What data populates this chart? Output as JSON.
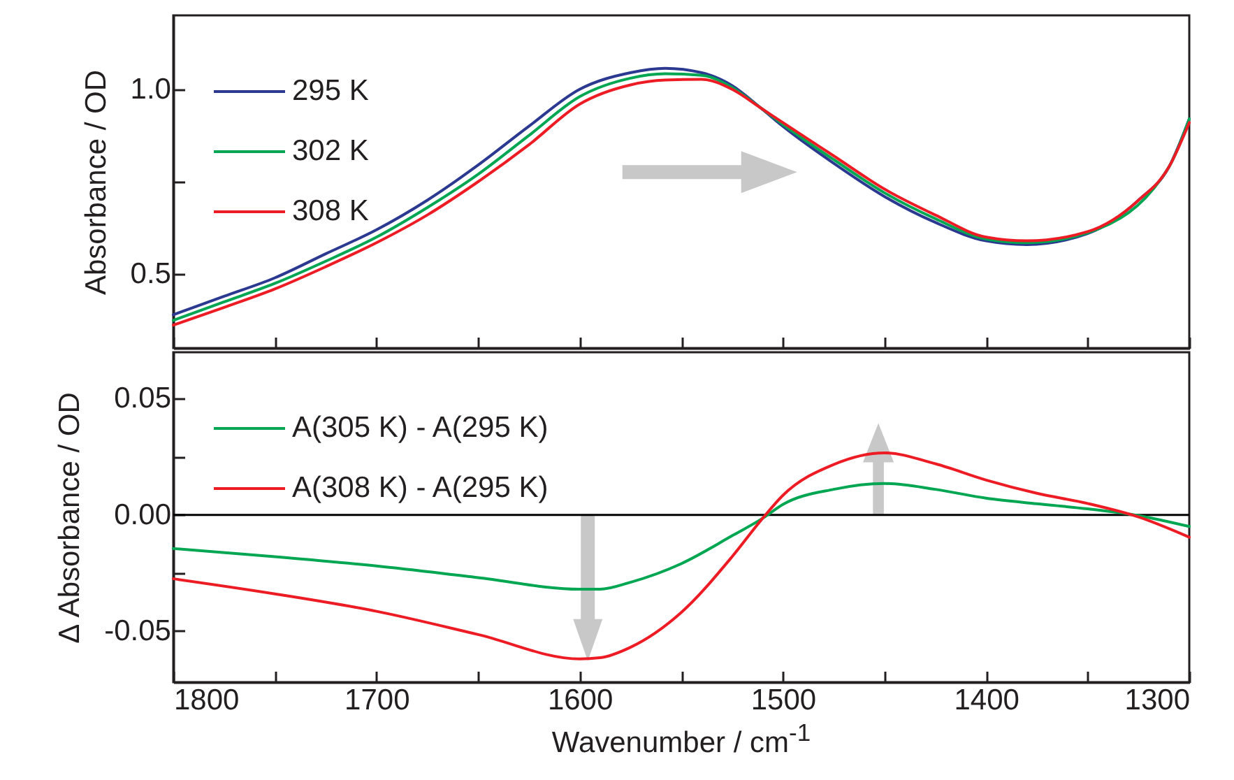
{
  "chart_data": [
    {
      "type": "line",
      "ylabel": "Absorbance / OD",
      "xlim": [
        1800,
        1300
      ],
      "xticks": [
        {
          "value": 1800,
          "label": null
        },
        {
          "value": 1750,
          "label": null
        },
        {
          "value": 1700,
          "label": null
        },
        {
          "value": 1650,
          "label": null
        },
        {
          "value": 1600,
          "label": null
        },
        {
          "value": 1550,
          "label": null
        },
        {
          "value": 1500,
          "label": null
        },
        {
          "value": 1450,
          "label": null
        },
        {
          "value": 1400,
          "label": null
        },
        {
          "value": 1350,
          "label": null
        },
        {
          "value": 1300,
          "label": null
        }
      ],
      "ylim": [
        0.3,
        1.2
      ],
      "yticks": [
        0.5,
        {
          "value": 0.75,
          "label": null
        },
        {
          "value": 1,
          "label": "1.0"
        }
      ],
      "tick_labels": "y",
      "legend": "top left",
      "x": [
        1800,
        1775,
        1750,
        1725,
        1700,
        1675,
        1650,
        1625,
        1600,
        1575,
        1558,
        1540,
        1525,
        1511,
        1500,
        1475,
        1450,
        1425,
        1400,
        1380,
        1350,
        1325,
        1310,
        1300
      ],
      "series": [
        {
          "name": "295 K",
          "color": "#2b3990",
          "values": [
            0.39,
            0.44,
            0.49,
            0.555,
            0.62,
            0.7,
            0.795,
            0.9,
            1.0,
            1.045,
            1.057,
            1.045,
            1.01,
            0.95,
            0.9,
            0.8,
            0.71,
            0.64,
            0.59,
            0.58,
            0.61,
            0.7,
            0.79,
            0.92
          ]
        },
        {
          "name": "302 K",
          "color": "#00a651",
          "values": [
            0.375,
            0.425,
            0.475,
            0.535,
            0.6,
            0.68,
            0.77,
            0.875,
            0.98,
            1.03,
            1.042,
            1.038,
            1.005,
            0.95,
            0.905,
            0.81,
            0.72,
            0.65,
            0.595,
            0.585,
            0.612,
            null,
            0.79,
            0.92
          ]
        },
        {
          "name": "308 K",
          "color": "#ed1c24",
          "values": [
            0.362,
            0.41,
            0.46,
            0.52,
            0.585,
            0.66,
            0.75,
            0.85,
            0.96,
            1.012,
            1.025,
            1.027,
            1.0,
            0.95,
            0.91,
            0.82,
            0.73,
            0.66,
            0.6,
            0.59,
            0.615,
            0.7,
            0.79,
            0.91
          ]
        }
      ]
    },
    {
      "type": "line",
      "xlabel": "Wavenumber / cm$^{-1}$",
      "ylabel": "Δ Absorbance / OD",
      "xlim": [
        1800,
        1300
      ],
      "xticks": [
        1800,
        {
          "value": 1750,
          "label": null
        },
        1700,
        {
          "value": 1650,
          "label": null
        },
        1600,
        {
          "value": 1550,
          "label": null
        },
        1500,
        {
          "value": 1450,
          "label": null
        },
        1400,
        {
          "value": 1350,
          "label": null
        },
        1300
      ],
      "ylim": [
        -0.072,
        0.07
      ],
      "yticks": [
        -0.05,
        {
          "value": -0.025,
          "label": null
        },
        {
          "value": 0,
          "label": "0.00"
        },
        {
          "value": 0.025,
          "label": null
        },
        0.05
      ],
      "legend": "top left",
      "x": [
        1800,
        1750,
        1700,
        1650,
        1600,
        1590,
        1575,
        1550,
        1525,
        1510,
        1500,
        1475,
        1450,
        1425,
        1400,
        1375,
        1350,
        1325,
        1300
      ],
      "series": [
        {
          "name": "A(305 K) - A(295 K)",
          "color": "#00a651",
          "values": [
            -0.0145,
            -0.018,
            -0.022,
            -0.027,
            -0.032,
            -0.032,
            -0.029,
            -0.021,
            -0.009,
            -0.0015,
            0.0045,
            0.011,
            0.0135,
            0.011,
            0.0072,
            0.0048,
            0.0026,
            -0.0003,
            -0.005
          ]
        },
        {
          "name": "A(308 K) - A(295 K)",
          "color": "#ed1c24",
          "values": [
            -0.0275,
            -0.034,
            -0.0415,
            -0.0515,
            -0.062,
            -0.0615,
            -0.057,
            -0.042,
            -0.018,
            -0.0015,
            0.0084,
            0.0217,
            0.0267,
            0.022,
            0.015,
            0.0093,
            0.0049,
            -0.0009,
            -0.0096
          ]
        }
      ],
      "ref_lines": [
        {
          "axis": "y",
          "value": 0,
          "color": "#000000"
        }
      ]
    }
  ]
}
